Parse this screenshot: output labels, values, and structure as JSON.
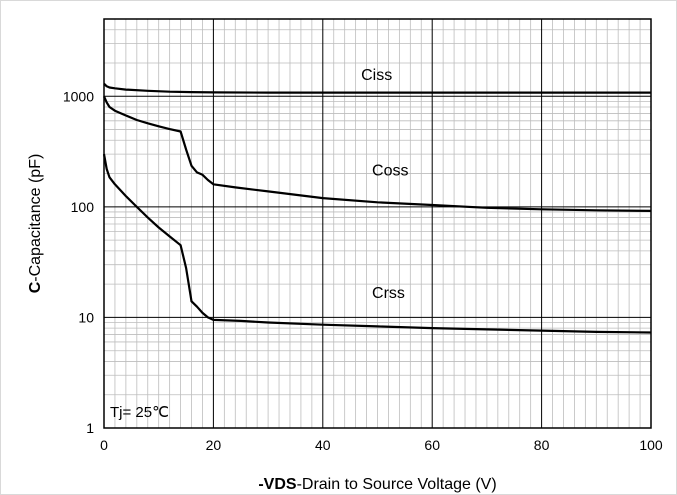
{
  "chart_data": {
    "type": "line",
    "title": "",
    "xlabel": {
      "bold": "-VDS",
      "rest": "-Drain to Source Voltage (V)"
    },
    "ylabel": {
      "bold": "C",
      "rest": "-Capacitance (pF)"
    },
    "xlim": [
      0,
      100
    ],
    "ylim": [
      1,
      5000
    ],
    "yscale": "log",
    "x_ticks": [
      "0",
      "20",
      "40",
      "60",
      "80",
      "100"
    ],
    "x_tick_values": [
      0,
      20,
      40,
      60,
      80,
      100
    ],
    "y_ticks": [
      "1",
      "10",
      "100",
      "1000"
    ],
    "y_tick_values": [
      1,
      10,
      100,
      1000
    ],
    "grid": true,
    "annotation": "Tj= 25℃",
    "line_color": "#000000",
    "series": [
      {
        "name": "Ciss",
        "label_at": [
          47,
          1400
        ],
        "points": [
          [
            0,
            1300
          ],
          [
            0.5,
            1230
          ],
          [
            1,
            1200
          ],
          [
            2,
            1180
          ],
          [
            4,
            1150
          ],
          [
            8,
            1120
          ],
          [
            12,
            1100
          ],
          [
            16,
            1090
          ],
          [
            20,
            1085
          ],
          [
            30,
            1080
          ],
          [
            40,
            1080
          ],
          [
            50,
            1080
          ],
          [
            60,
            1080
          ],
          [
            70,
            1080
          ],
          [
            80,
            1080
          ],
          [
            90,
            1080
          ],
          [
            100,
            1080
          ]
        ]
      },
      {
        "name": "Coss",
        "label_at": [
          49,
          193
        ],
        "points": [
          [
            0,
            1000
          ],
          [
            0.5,
            880
          ],
          [
            1,
            800
          ],
          [
            2,
            740
          ],
          [
            4,
            670
          ],
          [
            6,
            610
          ],
          [
            8,
            570
          ],
          [
            10,
            535
          ],
          [
            12,
            505
          ],
          [
            14,
            480
          ],
          [
            15,
            330
          ],
          [
            16,
            235
          ],
          [
            17,
            205
          ],
          [
            18,
            195
          ],
          [
            19,
            175
          ],
          [
            20,
            160
          ],
          [
            24,
            150
          ],
          [
            30,
            138
          ],
          [
            40,
            120
          ],
          [
            50,
            110
          ],
          [
            60,
            104
          ],
          [
            70,
            98
          ],
          [
            80,
            95
          ],
          [
            90,
            93
          ],
          [
            100,
            92
          ]
        ]
      },
      {
        "name": "Crss",
        "label_at": [
          49,
          15
        ],
        "points": [
          [
            0,
            300
          ],
          [
            0.5,
            220
          ],
          [
            1,
            185
          ],
          [
            2,
            160
          ],
          [
            4,
            125
          ],
          [
            6,
            100
          ],
          [
            8,
            80
          ],
          [
            10,
            65
          ],
          [
            12,
            54
          ],
          [
            14,
            45
          ],
          [
            15,
            28
          ],
          [
            16,
            14
          ],
          [
            17,
            12.5
          ],
          [
            18,
            11
          ],
          [
            19,
            10
          ],
          [
            20,
            9.5
          ],
          [
            25,
            9.3
          ],
          [
            30,
            9.0
          ],
          [
            40,
            8.6
          ],
          [
            50,
            8.3
          ],
          [
            60,
            8.0
          ],
          [
            70,
            7.8
          ],
          [
            80,
            7.6
          ],
          [
            90,
            7.4
          ],
          [
            100,
            7.3
          ]
        ]
      }
    ]
  }
}
